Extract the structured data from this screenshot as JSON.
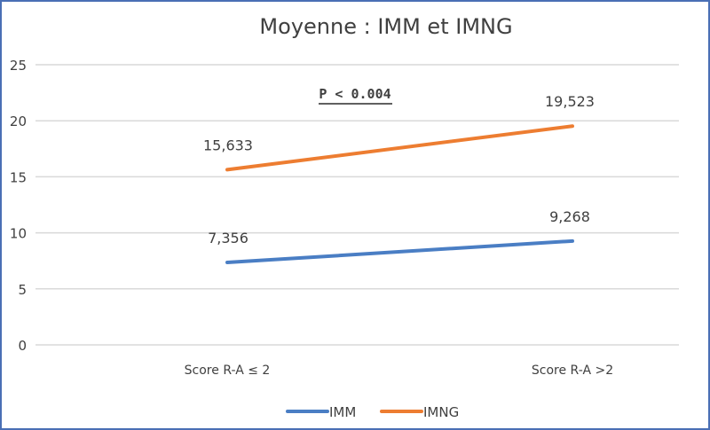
{
  "chart_data": {
    "type": "line",
    "title": "Moyenne : IMM et IMNG",
    "annotation": "P < 0.004",
    "categories": [
      "Score R-A ≤ 2",
      "Score R-A >2"
    ],
    "series": [
      {
        "name": "IMM",
        "color": "#4a7ec4",
        "values": [
          7.356,
          9.268
        ],
        "labels": [
          "7,356",
          "9,268"
        ]
      },
      {
        "name": "IMNG",
        "color": "#ed7d31",
        "values": [
          15.633,
          19.523
        ],
        "labels": [
          "15,633",
          "19,523"
        ]
      }
    ],
    "ylim": [
      0,
      25
    ],
    "yticks": [
      0,
      5,
      10,
      15,
      20,
      25
    ],
    "grid": true,
    "legend": "bottom"
  }
}
